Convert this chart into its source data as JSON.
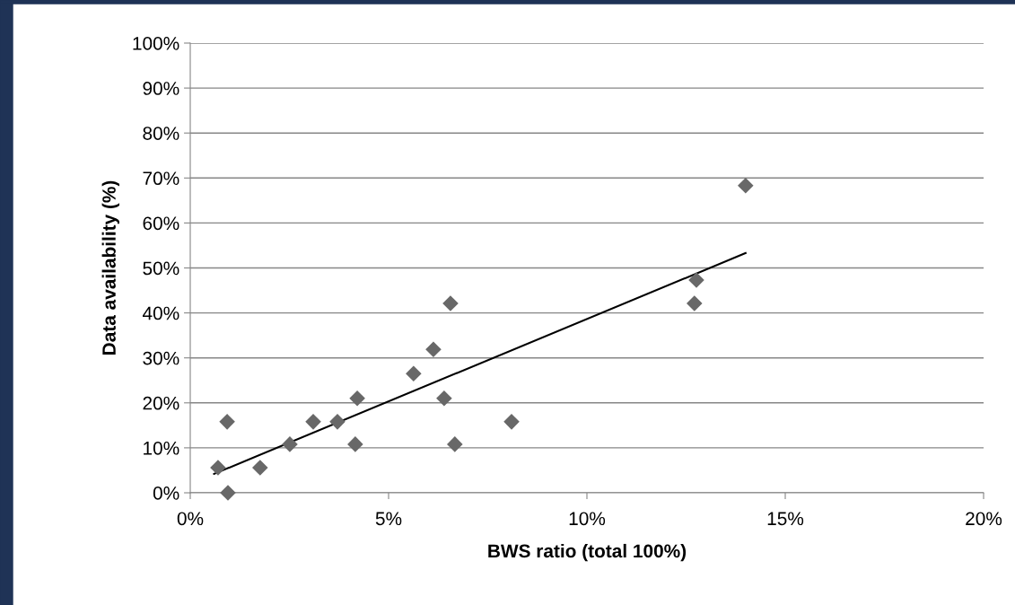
{
  "chart_data": {
    "type": "scatter",
    "xlabel": "BWS ratio (total 100%)",
    "ylabel": "Data availability (%)",
    "xlim": [
      0,
      20
    ],
    "ylim": [
      0,
      100
    ],
    "xticks": [
      {
        "value": 0,
        "label": "0%"
      },
      {
        "value": 5,
        "label": "5%"
      },
      {
        "value": 10,
        "label": "10%"
      },
      {
        "value": 15,
        "label": "15%"
      },
      {
        "value": 20,
        "label": "20%"
      }
    ],
    "yticks": [
      {
        "value": 0,
        "label": "0%"
      },
      {
        "value": 10,
        "label": "10%"
      },
      {
        "value": 20,
        "label": "20%"
      },
      {
        "value": 30,
        "label": "30%"
      },
      {
        "value": 40,
        "label": "40%"
      },
      {
        "value": 50,
        "label": "50%"
      },
      {
        "value": 60,
        "label": "60%"
      },
      {
        "value": 70,
        "label": "70%"
      },
      {
        "value": 80,
        "label": "80%"
      },
      {
        "value": 90,
        "label": "90%"
      },
      {
        "value": 100,
        "label": "100%"
      }
    ],
    "grid": "y",
    "legend": false,
    "marker": "diamond",
    "series": [
      {
        "color": "#686868",
        "x": [
          0.7,
          0.93,
          0.95,
          1.76,
          2.51,
          3.1,
          3.71,
          4.21,
          4.16,
          5.63,
          6.13,
          6.4,
          6.56,
          6.67,
          8.1,
          12.76,
          12.71,
          14.0
        ],
        "values": [
          5.6,
          15.8,
          0,
          5.6,
          10.8,
          15.8,
          15.8,
          21.0,
          10.8,
          26.5,
          31.9,
          21.0,
          42.1,
          10.8,
          15.8,
          47.3,
          42.1,
          68.3
        ]
      },
      {
        "type": "line",
        "color": "#000000",
        "marker": "none",
        "x": [
          0.6,
          14.0
        ],
        "values": [
          4.2,
          53.3
        ]
      }
    ]
  }
}
